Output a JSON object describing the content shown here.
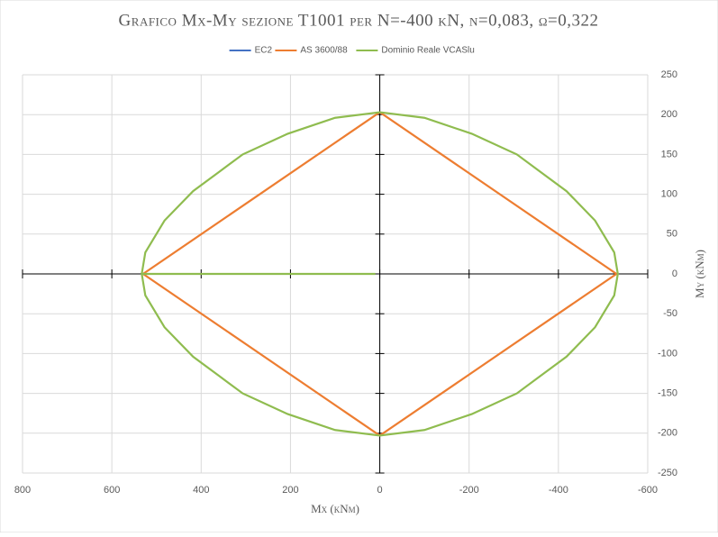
{
  "chart_data": {
    "type": "line",
    "title": "Grafico Mx-My sezione T1001 per N=-400 kN, ν=0,083, ω=0,322",
    "x_label": "Mx (kNm)",
    "y_label": "My (kNm)",
    "xlim": [
      800,
      -600
    ],
    "ylim": [
      -250,
      250
    ],
    "xticks": [
      800,
      600,
      400,
      200,
      0,
      -200,
      -400,
      -600
    ],
    "yticks": [
      250,
      200,
      150,
      100,
      50,
      0,
      -50,
      -100,
      -150,
      -200,
      -250
    ],
    "grid": true,
    "legend": "top",
    "series": [
      {
        "name": "EC2",
        "color": "#4472c4",
        "x": [],
        "y": []
      },
      {
        "name": "AS 3600/88",
        "color": "#ed7d31",
        "x": [
          0,
          -530,
          0,
          530,
          0
        ],
        "y": [
          203,
          0,
          -203,
          0,
          203
        ]
      },
      {
        "name": "Dominio Reale VCASlu",
        "color": "#8fbc4f",
        "x": [
          533,
          525,
          482,
          418,
          360,
          307,
          206,
          100,
          0,
          -100,
          -206,
          -307,
          -360,
          -418,
          -482,
          -525,
          -533,
          -525,
          -482,
          -418,
          -360,
          -307,
          -206,
          -100,
          0,
          100,
          206,
          307,
          360,
          418,
          482,
          525,
          533,
          10
        ],
        "y": [
          0,
          27,
          67,
          104,
          128,
          150,
          176,
          196,
          203,
          196,
          176,
          150,
          128,
          104,
          67,
          27,
          0,
          -27,
          -67,
          -104,
          -128,
          -150,
          -176,
          -196,
          -203,
          -196,
          -176,
          -150,
          -128,
          -104,
          -67,
          -27,
          0,
          0
        ]
      }
    ]
  }
}
